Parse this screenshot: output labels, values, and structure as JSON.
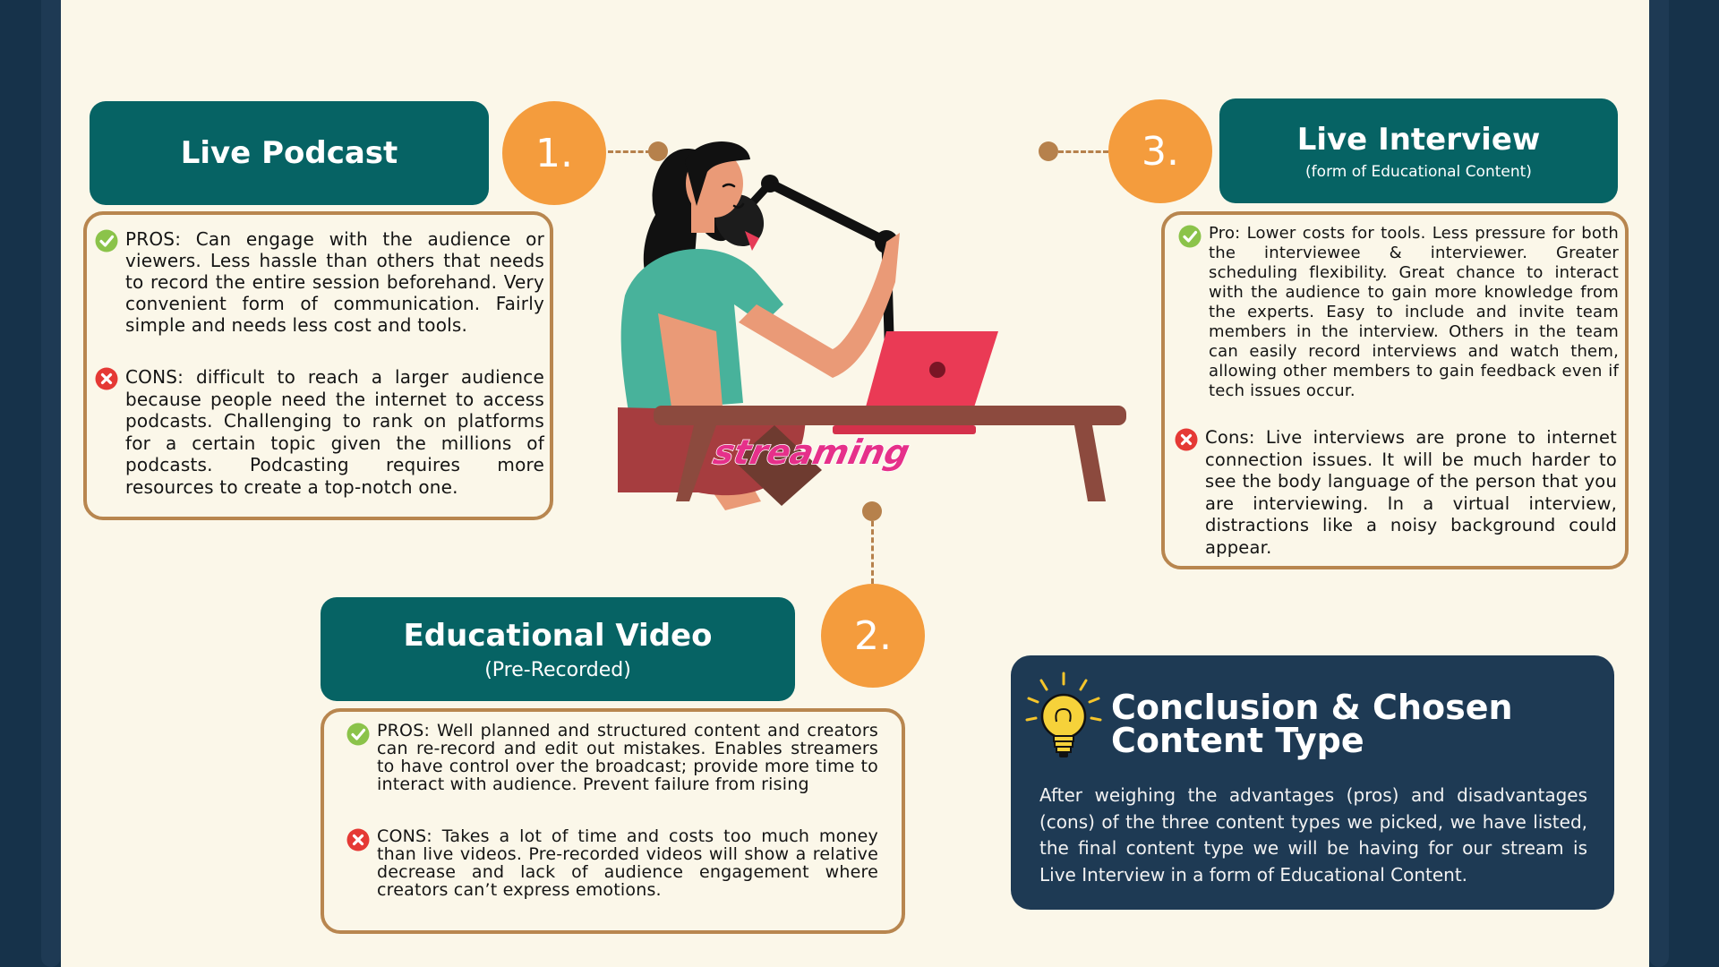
{
  "sections": {
    "podcast": {
      "number": "1.",
      "title": "Live Podcast",
      "pros_label": "PROS",
      "pros_text": ": Can engage with the audience or viewers. Less hassle than others that needs to record the entire session beforehand. Very convenient form of communication. Fairly simple and needs less cost and tools.",
      "cons_label": "CONS",
      "cons_text": ": difficult to reach a larger audience because people need the internet to access podcasts. Challenging to rank on platforms for a certain topic given the millions of podcasts. Podcasting requires more resources to create a top-notch one."
    },
    "video": {
      "number": "2.",
      "title": "Educational Video",
      "subtitle": "(Pre-Recorded)",
      "pros_label": "PROS",
      "pros_text": ": Well planned and structured content and creators can re-record and edit out mistakes. Enables streamers to have control over the broadcast; provide more time to interact with audience. Prevent failure from rising",
      "cons_label": "CONS",
      "cons_text": ": Takes a lot of time and costs too much money than live videos. Pre-recorded videos will show a relative decrease and lack of audience engagement where creators can’t express emotions."
    },
    "interview": {
      "number": "3.",
      "title": "Live Interview",
      "subtitle": "(form of Educational Content)",
      "pros_label": "Pro",
      "pros_text": ": Lower costs for tools. Less pressure for both the interviewee & interviewer. Greater scheduling flexibility. Great chance to interact with the audience to gain more knowledge from the experts. Easy to include and invite team members in the interview. Others in the team can easily record interviews and watch them, allowing other members to gain feedback even if tech issues occur.",
      "cons_label": "Cons",
      "cons_text": ": Live interviews are prone to internet connection issues. It will be much harder to see the body language of the person that you are interviewing. In a virtual interview, distractions like a noisy background could appear."
    }
  },
  "illustration": {
    "laptop_sticker": "streaming"
  },
  "conclusion": {
    "title_line1": "Conclusion & Chosen",
    "title_line2": "Content Type",
    "text": "After weighing the advantages (pros) and disadvantages (cons) of the three content types we picked, we have listed, the final content type we will be having for our stream is Live Interview in a form of Educational Content."
  },
  "colors": {
    "teal": "#066364",
    "orange": "#f49c3d",
    "navy": "#1e3a54",
    "card_border": "#b8864f",
    "background": "#fbf7e9",
    "check_green": "#8bc34a",
    "cross_red": "#e53935"
  },
  "icons": [
    "check-icon",
    "cross-icon",
    "lightbulb-icon"
  ]
}
